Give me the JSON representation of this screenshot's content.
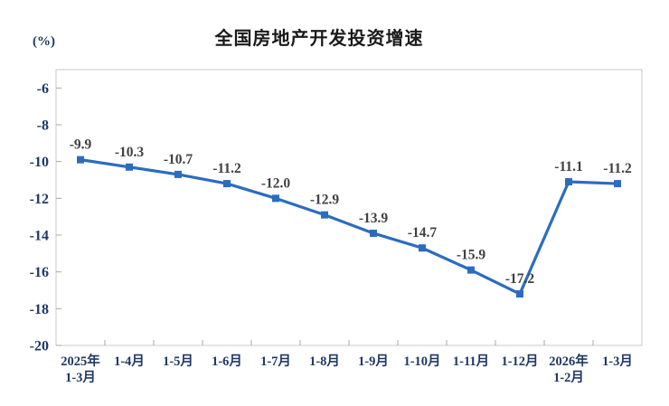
{
  "chart": {
    "title": "全国房地产开发投资增速",
    "unit_label": "(%)"
  },
  "chart_data": {
    "type": "line",
    "title": "全国房地产开发投资增速",
    "ylabel": "(%)",
    "xlabel": "",
    "categories": [
      "2025年\n1-3月",
      "1-4月",
      "1-5月",
      "1-6月",
      "1-7月",
      "1-8月",
      "1-9月",
      "1-10月",
      "1-11月",
      "1-12月",
      "2026年\n1-2月",
      "1-3月"
    ],
    "values": [
      -9.9,
      -10.3,
      -10.7,
      -11.2,
      -12.0,
      -12.9,
      -13.9,
      -14.7,
      -15.9,
      -17.2,
      -11.1,
      -11.2
    ],
    "data_labels": [
      "-9.9",
      "-10.3",
      "-10.7",
      "-11.2",
      "-12.0",
      "-12.9",
      "-13.9",
      "-14.7",
      "-15.9",
      "-17.2",
      "-11.1",
      "-11.2"
    ],
    "ylim": [
      -20,
      -5
    ],
    "yticks": [
      -6,
      -8,
      -10,
      -12,
      -14,
      -16,
      -18,
      -20
    ],
    "grid": false,
    "legend": "none",
    "series_color": "#2c6cbe",
    "marker": "square",
    "plot_border_color": "#c8c8c8",
    "tick_color": "#a8a8a8",
    "axis_label_color": "#1f3864",
    "data_label_color": "#404040"
  }
}
